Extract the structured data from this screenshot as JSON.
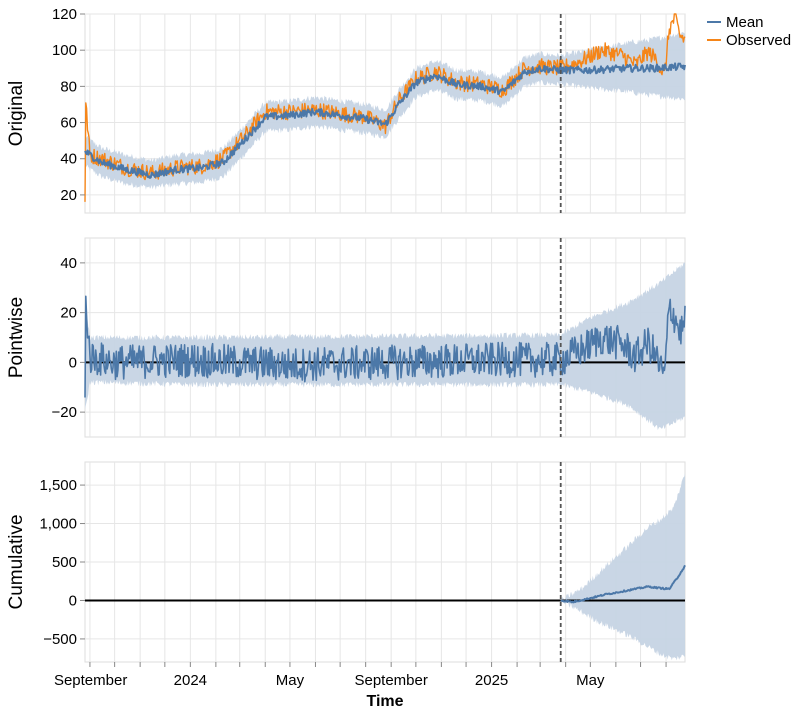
{
  "chart_data": {
    "type": "line",
    "xlabel": "Time",
    "x_tick_labels": [
      "September",
      "2024",
      "May",
      "September",
      "2025",
      "May"
    ],
    "x_ticks": [
      "2023-09-01",
      "2024-01-01",
      "2024-05-01",
      "2024-09-01",
      "2025-01-01",
      "2025-05-01"
    ],
    "x_range": [
      "2023-08-26",
      "2025-08-24"
    ],
    "intervention_date": "2025-03-26",
    "grid": true,
    "legend": {
      "position": "top-right",
      "entries": [
        {
          "label": "Mean",
          "color": "#4c78a8"
        },
        {
          "label": "Observed",
          "color": "#f58518"
        }
      ]
    },
    "colors": {
      "mean": "#4c78a8",
      "observed": "#f58518",
      "band": "#c6d4e4",
      "zero_line": "#000000",
      "intervention_line": "#555555"
    },
    "panels": [
      {
        "ylabel": "Original",
        "ylim": [
          10,
          120
        ],
        "yticks": [
          20,
          40,
          60,
          80,
          100,
          120
        ],
        "ytick_labels": [
          "20",
          "40",
          "60",
          "80",
          "100",
          "120"
        ],
        "mean": [
          [
            "2023-08-26",
            44
          ],
          [
            "2023-09-15",
            38
          ],
          [
            "2023-10-15",
            34
          ],
          [
            "2023-11-15",
            31
          ],
          [
            "2023-12-15",
            34
          ],
          [
            "2024-01-15",
            35
          ],
          [
            "2024-02-10",
            38
          ],
          [
            "2024-03-10",
            52
          ],
          [
            "2024-04-01",
            63
          ],
          [
            "2024-05-01",
            64
          ],
          [
            "2024-06-01",
            66
          ],
          [
            "2024-07-01",
            64
          ],
          [
            "2024-08-01",
            62
          ],
          [
            "2024-08-25",
            59
          ],
          [
            "2024-09-10",
            70
          ],
          [
            "2024-10-01",
            82
          ],
          [
            "2024-10-25",
            86
          ],
          [
            "2024-11-20",
            81
          ],
          [
            "2024-12-20",
            80
          ],
          [
            "2025-01-15",
            77
          ],
          [
            "2025-02-10",
            88
          ],
          [
            "2025-03-01",
            90
          ],
          [
            "2025-03-26",
            89
          ],
          [
            "2025-05-01",
            89
          ],
          [
            "2025-06-15",
            90
          ],
          [
            "2025-07-15",
            90
          ],
          [
            "2025-08-24",
            91
          ]
        ],
        "band_lower": [
          [
            "2023-08-26",
            36
          ],
          [
            "2023-09-15",
            30
          ],
          [
            "2023-10-15",
            26
          ],
          [
            "2023-11-15",
            24
          ],
          [
            "2023-12-15",
            26
          ],
          [
            "2024-01-15",
            27
          ],
          [
            "2024-02-10",
            30
          ],
          [
            "2024-03-10",
            44
          ],
          [
            "2024-04-01",
            55
          ],
          [
            "2024-05-01",
            56
          ],
          [
            "2024-06-01",
            58
          ],
          [
            "2024-07-01",
            56
          ],
          [
            "2024-08-01",
            54
          ],
          [
            "2024-08-25",
            52
          ],
          [
            "2024-09-10",
            62
          ],
          [
            "2024-10-01",
            74
          ],
          [
            "2024-10-25",
            78
          ],
          [
            "2024-11-20",
            73
          ],
          [
            "2024-12-20",
            72
          ],
          [
            "2025-01-15",
            69
          ],
          [
            "2025-02-10",
            80
          ],
          [
            "2025-03-01",
            82
          ],
          [
            "2025-03-26",
            81
          ],
          [
            "2025-05-01",
            79
          ],
          [
            "2025-06-15",
            77
          ],
          [
            "2025-07-15",
            75
          ],
          [
            "2025-08-24",
            73
          ]
        ],
        "band_upper": [
          [
            "2023-08-26",
            52
          ],
          [
            "2023-09-15",
            46
          ],
          [
            "2023-10-15",
            42
          ],
          [
            "2023-11-15",
            39
          ],
          [
            "2023-12-15",
            42
          ],
          [
            "2024-01-15",
            43
          ],
          [
            "2024-02-10",
            46
          ],
          [
            "2024-03-10",
            60
          ],
          [
            "2024-04-01",
            71
          ],
          [
            "2024-05-01",
            72
          ],
          [
            "2024-06-01",
            74
          ],
          [
            "2024-07-01",
            72
          ],
          [
            "2024-08-01",
            70
          ],
          [
            "2024-08-25",
            67
          ],
          [
            "2024-09-10",
            78
          ],
          [
            "2024-10-01",
            90
          ],
          [
            "2024-10-25",
            94
          ],
          [
            "2024-11-20",
            89
          ],
          [
            "2024-12-20",
            88
          ],
          [
            "2025-01-15",
            85
          ],
          [
            "2025-02-10",
            96
          ],
          [
            "2025-03-01",
            98
          ],
          [
            "2025-03-26",
            97
          ],
          [
            "2025-05-01",
            100
          ],
          [
            "2025-06-15",
            104
          ],
          [
            "2025-07-15",
            106
          ],
          [
            "2025-08-24",
            110
          ]
        ],
        "observed": [
          [
            "2023-08-26",
            18
          ],
          [
            "2023-08-27",
            70
          ],
          [
            "2023-09-01",
            42
          ],
          [
            "2023-09-15",
            40
          ],
          [
            "2023-10-15",
            35
          ],
          [
            "2023-11-15",
            32
          ],
          [
            "2023-12-15",
            35
          ],
          [
            "2024-01-15",
            36
          ],
          [
            "2024-02-10",
            40
          ],
          [
            "2024-03-10",
            54
          ],
          [
            "2024-04-01",
            66
          ],
          [
            "2024-05-01",
            66
          ],
          [
            "2024-06-01",
            67
          ],
          [
            "2024-07-01",
            65
          ],
          [
            "2024-08-01",
            63
          ],
          [
            "2024-08-25",
            58
          ],
          [
            "2024-09-10",
            72
          ],
          [
            "2024-10-01",
            84
          ],
          [
            "2024-10-25",
            88
          ],
          [
            "2024-11-20",
            82
          ],
          [
            "2024-12-20",
            81
          ],
          [
            "2025-01-15",
            78
          ],
          [
            "2025-02-10",
            90
          ],
          [
            "2025-03-01",
            91
          ],
          [
            "2025-03-26",
            90
          ],
          [
            "2025-04-15",
            93
          ],
          [
            "2025-05-15",
            100
          ],
          [
            "2025-06-10",
            97
          ],
          [
            "2025-06-25",
            92
          ],
          [
            "2025-07-10",
            99
          ],
          [
            "2025-07-20",
            95
          ],
          [
            "2025-07-30",
            86
          ],
          [
            "2025-08-05",
            112
          ],
          [
            "2025-08-12",
            118
          ],
          [
            "2025-08-18",
            108
          ],
          [
            "2025-08-24",
            106
          ]
        ]
      },
      {
        "ylabel": "Pointwise",
        "ylim": [
          -30,
          50
        ],
        "yticks": [
          -20,
          0,
          20,
          40
        ],
        "ytick_labels": [
          "−20",
          "0",
          "20",
          "40"
        ],
        "mean": [
          [
            "2023-08-26",
            -18
          ],
          [
            "2023-08-27",
            25
          ],
          [
            "2023-09-01",
            2
          ],
          [
            "2023-10-01",
            0
          ],
          [
            "2024-01-01",
            1
          ],
          [
            "2024-05-01",
            -1
          ],
          [
            "2024-09-01",
            0
          ],
          [
            "2025-01-01",
            1
          ],
          [
            "2025-03-26",
            1
          ],
          [
            "2025-04-20",
            5
          ],
          [
            "2025-05-15",
            10
          ],
          [
            "2025-06-10",
            7
          ],
          [
            "2025-06-25",
            2
          ],
          [
            "2025-07-10",
            8
          ],
          [
            "2025-07-20",
            2
          ],
          [
            "2025-07-30",
            -6
          ],
          [
            "2025-08-05",
            23
          ],
          [
            "2025-08-12",
            18
          ],
          [
            "2025-08-18",
            12
          ],
          [
            "2025-08-24",
            16
          ]
        ],
        "band_lower": [
          [
            "2023-08-26",
            -20
          ],
          [
            "2023-09-01",
            -8
          ],
          [
            "2024-01-01",
            -9
          ],
          [
            "2025-03-26",
            -9
          ],
          [
            "2025-05-01",
            -12
          ],
          [
            "2025-06-15",
            -17
          ],
          [
            "2025-07-25",
            -27
          ],
          [
            "2025-08-24",
            -22
          ]
        ],
        "band_upper": [
          [
            "2023-08-26",
            26
          ],
          [
            "2023-09-01",
            10
          ],
          [
            "2024-01-01",
            10
          ],
          [
            "2025-03-26",
            11
          ],
          [
            "2025-05-01",
            18
          ],
          [
            "2025-06-15",
            24
          ],
          [
            "2025-07-25",
            32
          ],
          [
            "2025-08-24",
            40
          ]
        ]
      },
      {
        "ylabel": "Cumulative",
        "ylim": [
          -800,
          1800
        ],
        "yticks": [
          -500,
          0,
          500,
          1000,
          1500
        ],
        "ytick_labels": [
          "−500",
          "0",
          "500",
          "1,000",
          "1,500"
        ],
        "mean": [
          [
            "2025-03-26",
            0
          ],
          [
            "2025-04-10",
            -20
          ],
          [
            "2025-05-01",
            30
          ],
          [
            "2025-05-20",
            80
          ],
          [
            "2025-06-10",
            120
          ],
          [
            "2025-06-25",
            150
          ],
          [
            "2025-07-10",
            180
          ],
          [
            "2025-07-25",
            160
          ],
          [
            "2025-08-05",
            150
          ],
          [
            "2025-08-15",
            300
          ],
          [
            "2025-08-24",
            450
          ]
        ],
        "band_lower": [
          [
            "2025-03-26",
            0
          ],
          [
            "2025-04-20",
            -150
          ],
          [
            "2025-05-15",
            -300
          ],
          [
            "2025-06-15",
            -450
          ],
          [
            "2025-07-10",
            -600
          ],
          [
            "2025-07-25",
            -700
          ],
          [
            "2025-08-10",
            -760
          ],
          [
            "2025-08-24",
            -720
          ]
        ],
        "band_upper": [
          [
            "2025-03-26",
            0
          ],
          [
            "2025-04-20",
            150
          ],
          [
            "2025-05-15",
            400
          ],
          [
            "2025-06-15",
            700
          ],
          [
            "2025-07-10",
            950
          ],
          [
            "2025-07-25",
            1050
          ],
          [
            "2025-08-10",
            1200
          ],
          [
            "2025-08-24",
            1650
          ]
        ]
      }
    ]
  }
}
